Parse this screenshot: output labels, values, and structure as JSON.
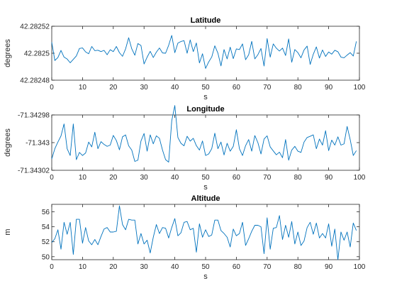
{
  "chart_data": [
    {
      "type": "line",
      "title": "Latitude",
      "xlabel": "s",
      "ylabel": "degrees",
      "xlim": [
        0,
        100
      ],
      "ylim": [
        42.28248,
        42.28252
      ],
      "xticks": [
        0,
        10,
        20,
        30,
        40,
        50,
        60,
        70,
        80,
        90,
        100
      ],
      "xtick_labels": [
        "0",
        "10",
        "20",
        "30",
        "40",
        "50",
        "60",
        "70",
        "80",
        "90",
        "100"
      ],
      "yticks": [
        42.28248,
        42.2825,
        42.28252
      ],
      "ytick_labels": [
        "42.28248",
        "42.2825",
        "42.28252"
      ],
      "grid": false,
      "color": "#0072bd",
      "series": [
        {
          "x": [
            0,
            1,
            2,
            3,
            4,
            5,
            6,
            7,
            8,
            9,
            10,
            11,
            12,
            13,
            14,
            15,
            16,
            17,
            18,
            19,
            20,
            21,
            22,
            23,
            24,
            25,
            26,
            27,
            28,
            29,
            30,
            31,
            32,
            33,
            34,
            35,
            36,
            37,
            38,
            39,
            40,
            41,
            42,
            43,
            44,
            45,
            46,
            47,
            48,
            49,
            50,
            51,
            52,
            53,
            54,
            55,
            56,
            57,
            58,
            59,
            60,
            61,
            62,
            63,
            64,
            65,
            66,
            67,
            68,
            69,
            70,
            71,
            72,
            73,
            74,
            75,
            76,
            77,
            78,
            79,
            80,
            81,
            82,
            83,
            84,
            85,
            86,
            87,
            88,
            89,
            90,
            91,
            92,
            93,
            94,
            95,
            96,
            97,
            98,
            99
          ],
          "values": [
            42.2825082,
            42.2824946,
            42.2824968,
            42.2825021,
            42.2824971,
            42.2824957,
            42.2824929,
            42.2824954,
            42.282498,
            42.2825035,
            42.2825039,
            42.282501,
            42.2824996,
            42.282505,
            42.2825019,
            42.2825022,
            42.2825012,
            42.2825021,
            42.2824989,
            42.2825026,
            42.2825012,
            42.282505,
            42.2825004,
            42.2824977,
            42.2825032,
            42.2825115,
            42.2825033,
            42.2824985,
            42.2825072,
            42.2825057,
            42.282492,
            42.2824971,
            42.2825014,
            42.2824968,
            42.2825008,
            42.2825039,
            42.2825002,
            42.2825,
            42.2825059,
            42.2825132,
            42.2825004,
            42.2825075,
            42.2825087,
            42.2825093,
            42.2825,
            42.2825099,
            42.2825012,
            42.2825076,
            42.2824928,
            42.2824996,
            42.2824887,
            42.2824935,
            42.2824972,
            42.2825055,
            42.2825001,
            42.2824906,
            42.2825027,
            42.2824958,
            42.2825045,
            42.282496,
            42.2825032,
            42.2825027,
            42.2825069,
            42.2824952,
            42.2824988,
            42.2825088,
            42.2824958,
            42.2824989,
            42.2825035,
            42.2824905,
            42.2825109,
            42.2824971,
            42.2825069,
            42.2825037,
            42.2825016,
            42.2825038,
            42.2824983,
            42.2825106,
            42.2824933,
            42.2825027,
            42.2825004,
            42.2824966,
            42.2825024,
            42.2825053,
            42.2824917,
            42.2824992,
            42.2825047,
            42.2824964,
            42.2825024,
            42.2824976,
            42.2825009,
            42.2824993,
            42.2825022,
            42.2825011,
            42.2824971,
            42.2824966,
            42.2824986,
            42.2825004,
            42.2824979,
            42.2825088
          ]
        }
      ]
    },
    {
      "type": "line",
      "title": "Longitude",
      "xlabel": "s",
      "ylabel": "degrees",
      "xlim": [
        0,
        100
      ],
      "ylim": [
        -71.34302,
        -71.34298
      ],
      "xticks": [
        0,
        10,
        20,
        30,
        40,
        50,
        60,
        70,
        80,
        90,
        100
      ],
      "xtick_labels": [
        "0",
        "10",
        "20",
        "30",
        "40",
        "50",
        "60",
        "70",
        "80",
        "90",
        "100"
      ],
      "yticks": [
        -71.34302,
        -71.343,
        -71.34298
      ],
      "ytick_labels": [
        "-71.34302",
        "-71.343",
        "-71.34298"
      ],
      "grid": false,
      "color": "#0072bd",
      "series": [
        {
          "x": [
            0,
            1,
            2,
            3,
            4,
            5,
            6,
            7,
            8,
            9,
            10,
            11,
            12,
            13,
            14,
            15,
            16,
            17,
            18,
            19,
            20,
            21,
            22,
            23,
            24,
            25,
            26,
            27,
            28,
            29,
            30,
            31,
            32,
            33,
            34,
            35,
            36,
            37,
            38,
            39,
            40,
            41,
            42,
            43,
            44,
            45,
            46,
            47,
            48,
            49,
            50,
            51,
            52,
            53,
            54,
            55,
            56,
            57,
            58,
            59,
            60,
            61,
            62,
            63,
            64,
            65,
            66,
            67,
            68,
            69,
            70,
            71,
            72,
            73,
            74,
            75,
            76,
            77,
            78,
            79,
            80,
            81,
            82,
            83,
            84,
            85,
            86,
            87,
            88,
            89,
            90,
            91,
            92,
            93,
            94,
            95,
            96,
            97,
            98,
            99
          ],
          "values": [
            -71.3430118,
            -71.3430044,
            -71.3429996,
            -71.3429952,
            -71.3429865,
            -71.3430044,
            -71.3430093,
            -71.3429865,
            -71.3430123,
            -71.3430071,
            -71.3430093,
            -71.3430075,
            -71.3429996,
            -71.3430031,
            -71.3429925,
            -71.3430044,
            -71.3429993,
            -71.3430013,
            -71.3430027,
            -71.3430018,
            -71.3429948,
            -71.3429985,
            -71.3430052,
            -71.3429958,
            -71.3429944,
            -71.3430023,
            -71.3430054,
            -71.3430136,
            -71.3430127,
            -71.3429988,
            -71.3429934,
            -71.3430062,
            -71.3429944,
            -71.3430009,
            -71.3429951,
            -71.3429969,
            -71.3430054,
            -71.3430123,
            -71.3430141,
            -71.3429842,
            -71.3429732,
            -71.3429963,
            -71.3430005,
            -71.3430023,
            -71.3429954,
            -71.3429989,
            -71.3429969,
            -71.3430022,
            -71.3430054,
            -71.3429988,
            -71.3430093,
            -71.3430082,
            -71.3430044,
            -71.3429932,
            -71.3430044,
            -71.3429996,
            -71.3430089,
            -71.3430005,
            -71.3430062,
            -71.3430027,
            -71.3429907,
            -71.3430044,
            -71.3430093,
            -71.3430022,
            -71.3429978,
            -71.3430062,
            -71.3429949,
            -71.343,
            -71.3430082,
            -71.3429974,
            -71.3429951,
            -71.3430031,
            -71.343006,
            -71.3430088,
            -71.3430069,
            -71.3430109,
            -71.3429978,
            -71.3430127,
            -71.3430054,
            -71.3430027,
            -71.3430062,
            -71.3430071,
            -71.3429996,
            -71.3429963,
            -71.3429954,
            -71.3429944,
            -71.3430044,
            -71.3429974,
            -71.3430018,
            -71.3429914,
            -71.3430058,
            -71.3429982,
            -71.3430018,
            -71.3429958,
            -71.3430018,
            -71.3430009,
            -71.3429883,
            -71.3429978,
            -71.3430093,
            -71.3430058
          ]
        }
      ]
    },
    {
      "type": "line",
      "title": "Altitude",
      "xlabel": "s",
      "ylabel": "m",
      "xlim": [
        0,
        100
      ],
      "ylim": [
        49.6,
        57.0
      ],
      "xticks": [
        0,
        10,
        20,
        30,
        40,
        50,
        60,
        70,
        80,
        90,
        100
      ],
      "xtick_labels": [
        "0",
        "10",
        "20",
        "30",
        "40",
        "50",
        "60",
        "70",
        "80",
        "90",
        "100"
      ],
      "yticks": [
        50,
        52,
        54,
        56
      ],
      "ytick_labels": [
        "50",
        "52",
        "54",
        "56"
      ],
      "grid": false,
      "color": "#0072bd",
      "series": [
        {
          "x": [
            0,
            1,
            2,
            3,
            4,
            5,
            6,
            7,
            8,
            9,
            10,
            11,
            12,
            13,
            14,
            15,
            16,
            17,
            18,
            19,
            20,
            21,
            22,
            23,
            24,
            25,
            26,
            27,
            28,
            29,
            30,
            31,
            32,
            33,
            34,
            35,
            36,
            37,
            38,
            39,
            40,
            41,
            42,
            43,
            44,
            45,
            46,
            47,
            48,
            49,
            50,
            51,
            52,
            53,
            54,
            55,
            56,
            57,
            58,
            59,
            60,
            61,
            62,
            63,
            64,
            65,
            66,
            67,
            68,
            69,
            70,
            71,
            72,
            73,
            74,
            75,
            76,
            77,
            78,
            79,
            80,
            81,
            82,
            83,
            84,
            85,
            86,
            87,
            88,
            89,
            90,
            91,
            92,
            93,
            94,
            95,
            96,
            97,
            98,
            99
          ],
          "values": [
            51.9,
            52.4,
            53.6,
            51.0,
            54.6,
            53.0,
            54.6,
            50.3,
            55.0,
            55.0,
            51.8,
            53.9,
            52.1,
            51.6,
            52.3,
            51.6,
            52.7,
            53.7,
            53.9,
            53.3,
            53.3,
            53.4,
            56.8,
            54.3,
            53.6,
            55.0,
            54.9,
            54.9,
            51.7,
            53.1,
            51.7,
            52.2,
            50.5,
            52.6,
            54.3,
            53.1,
            53.9,
            53.8,
            52.5,
            53.9,
            55.1,
            52.8,
            53.2,
            54.6,
            54.7,
            53.6,
            53.8,
            50.6,
            54.4,
            52.6,
            53.6,
            52.7,
            52.9,
            54.9,
            54.9,
            53.5,
            53.1,
            52.6,
            51.3,
            53.7,
            52.8,
            53.1,
            54.6,
            51.5,
            52.4,
            53.4,
            54.2,
            54.2,
            54.0,
            50.4,
            55.2,
            51.0,
            53.8,
            53.9,
            55.5,
            52.3,
            54.2,
            52.6,
            54.7,
            51.7,
            53.3,
            51.5,
            52.1,
            53.9,
            54.6,
            53.0,
            54.5,
            52.5,
            53.1,
            52.5,
            54.4,
            51.4,
            53.7,
            49.6,
            53.3,
            52.2,
            53.3,
            51.3,
            54.5,
            53.5
          ]
        }
      ]
    }
  ]
}
